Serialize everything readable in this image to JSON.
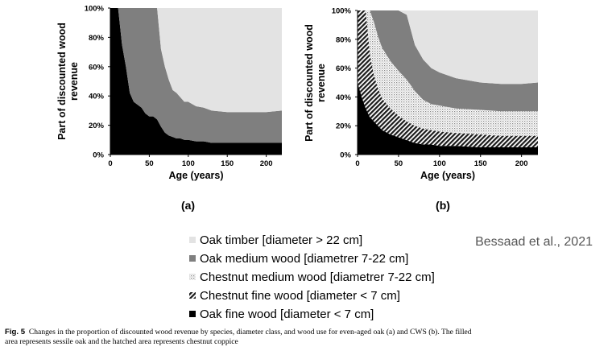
{
  "colors": {
    "oak_timber": "#e3e3e3",
    "oak_medium": "#7f7f7f",
    "chestnut_medium": "#d0d0d0",
    "chestnut_fine": "#555555",
    "oak_fine": "#000000"
  },
  "chart_data": [
    {
      "type": "area",
      "stacked": true,
      "panel_label": "(a)",
      "xlabel": "Age (years)",
      "ylabel": "Part of discounted wood revenue",
      "xlim": [
        0,
        220
      ],
      "ylim": [
        0,
        100
      ],
      "x_ticks": [
        "0",
        "50",
        "100",
        "150",
        "200"
      ],
      "y_ticks": [
        "0%",
        "20%",
        "40%",
        "60%",
        "80%",
        "100%"
      ],
      "x": [
        0,
        10,
        15,
        20,
        25,
        30,
        35,
        40,
        45,
        50,
        55,
        60,
        65,
        70,
        75,
        80,
        85,
        90,
        95,
        100,
        110,
        120,
        130,
        150,
        175,
        200,
        220
      ],
      "series": [
        {
          "name": "Oak fine wood",
          "color_key": "oak_fine",
          "pattern": "solid",
          "values": [
            100,
            100,
            75,
            60,
            42,
            36,
            34,
            32,
            28,
            26,
            26,
            24,
            19,
            15,
            13,
            12,
            11,
            11,
            10,
            10,
            9,
            9,
            8,
            8,
            8,
            8,
            8
          ]
        },
        {
          "name": "Oak medium wood",
          "color_key": "oak_medium",
          "pattern": "solid",
          "values": [
            0,
            0,
            25,
            40,
            58,
            64,
            66,
            68,
            72,
            74,
            74,
            76,
            53,
            45,
            38,
            32,
            31,
            28,
            26,
            26,
            24,
            23,
            22,
            21,
            21,
            21,
            22
          ]
        },
        {
          "name": "Oak timber",
          "color_key": "oak_timber",
          "pattern": "solid",
          "values": [
            0,
            0,
            0,
            0,
            0,
            0,
            0,
            0,
            0,
            0,
            0,
            0,
            28,
            40,
            49,
            56,
            58,
            61,
            64,
            64,
            67,
            68,
            70,
            71,
            71,
            71,
            70
          ]
        }
      ]
    },
    {
      "type": "area",
      "stacked": true,
      "panel_label": "(b)",
      "xlabel": "Age (years)",
      "ylabel": "Part of discounted wood revenue",
      "xlim": [
        0,
        220
      ],
      "ylim": [
        0,
        100
      ],
      "x_ticks": [
        "0",
        "50",
        "100",
        "150",
        "200"
      ],
      "y_ticks": [
        "0%",
        "20%",
        "40%",
        "60%",
        "80%",
        "100%"
      ],
      "x": [
        0,
        5,
        10,
        15,
        20,
        25,
        30,
        40,
        50,
        60,
        70,
        80,
        90,
        100,
        120,
        150,
        175,
        200,
        220
      ],
      "series": [
        {
          "name": "Oak fine wood",
          "color_key": "oak_fine",
          "pattern": "solid",
          "values": [
            50,
            40,
            32,
            26,
            23,
            20,
            17,
            14,
            12,
            10,
            8,
            7,
            7,
            6,
            6,
            5,
            5,
            5,
            5
          ]
        },
        {
          "name": "Chestnut fine wood",
          "color_key": "chestnut_fine",
          "pattern": "hatch",
          "values": [
            50,
            60,
            68,
            44,
            32,
            26,
            22,
            18,
            15,
            13,
            12,
            11,
            10,
            10,
            9,
            9,
            8,
            8,
            8
          ]
        },
        {
          "name": "Chestnut medium wood",
          "color_key": "chestnut_medium",
          "pattern": "dots",
          "values": [
            0,
            0,
            0,
            30,
            37,
            36,
            35,
            33,
            31,
            29,
            24,
            20,
            18,
            18,
            17,
            17,
            17,
            17,
            17
          ]
        },
        {
          "name": "Oak medium wood",
          "color_key": "oak_medium",
          "pattern": "solid",
          "values": [
            0,
            0,
            0,
            0,
            8,
            18,
            26,
            35,
            42,
            45,
            32,
            28,
            25,
            23,
            21,
            19,
            19,
            19,
            20
          ]
        },
        {
          "name": "Oak timber",
          "color_key": "oak_timber",
          "pattern": "solid",
          "values": [
            0,
            0,
            0,
            0,
            0,
            0,
            0,
            0,
            0,
            3,
            24,
            34,
            40,
            43,
            47,
            50,
            51,
            51,
            50
          ]
        }
      ]
    }
  ],
  "legend": [
    {
      "label": "Oak timber [diameter > 22 cm]",
      "color_key": "oak_timber",
      "pattern": "solid"
    },
    {
      "label": "Oak medium wood [diametrer 7-22 cm]",
      "color_key": "oak_medium",
      "pattern": "solid"
    },
    {
      "label": "Chestnut medium wood [diametrer 7-22 cm]",
      "color_key": "chestnut_medium",
      "pattern": "dots"
    },
    {
      "label": "Chestnut fine wood [diameter < 7 cm]",
      "color_key": "chestnut_fine",
      "pattern": "hatch"
    },
    {
      "label": "Oak fine wood [diameter < 7 cm]",
      "color_key": "oak_fine",
      "pattern": "solid"
    }
  ],
  "credit": "Bessaad et al., 2021",
  "caption": {
    "fig_label": "Fig. 5",
    "line1": "Changes in the proportion of discounted wood revenue by species, diameter class, and wood use for even-aged oak (a) and CWS (b). The filled",
    "line2": "area represents sessile oak and the hatched area represents chestnut coppice"
  }
}
